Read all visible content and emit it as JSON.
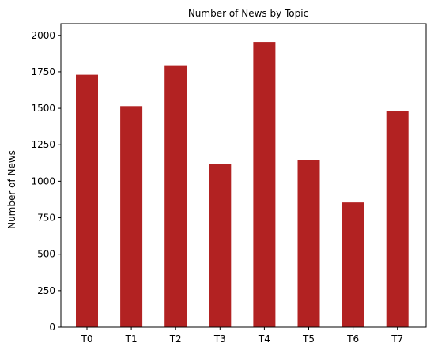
{
  "chart_data": {
    "type": "bar",
    "title": "Number of News by  Topic",
    "xlabel": "",
    "ylabel": "Number of News",
    "categories": [
      "T0",
      "T1",
      "T2",
      "T3",
      "T4",
      "T5",
      "T6",
      "T7"
    ],
    "values": [
      1730,
      1515,
      1795,
      1120,
      1955,
      1148,
      855,
      1480
    ],
    "ylim": [
      0,
      2080
    ],
    "yticks": [
      0,
      250,
      500,
      750,
      1000,
      1250,
      1500,
      1750,
      2000
    ],
    "grid": false,
    "bar_color": "#b22222"
  }
}
